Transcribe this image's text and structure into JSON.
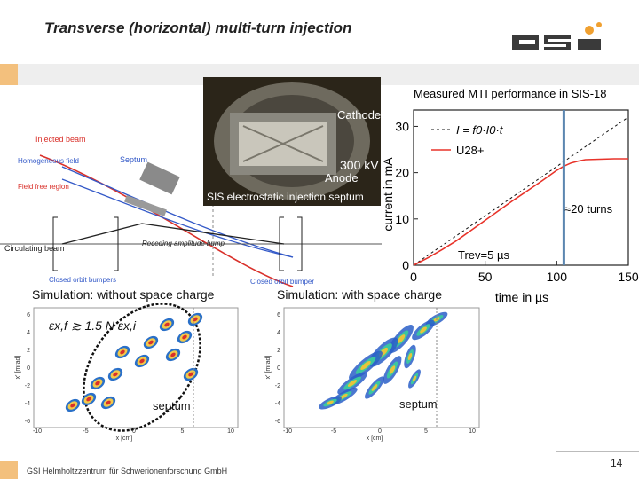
{
  "slide": {
    "title": "Transverse (horizontal) multi-turn injection",
    "logo_text": "GSI",
    "footer": "GSI Helmholtzzentrum für Schwerionenforschung GmbH",
    "page_number": "14"
  },
  "photo": {
    "cathode": "Cathode",
    "voltage": "300 kV",
    "anode": "Anode",
    "caption": "SIS electrostatic injection septum"
  },
  "schematic": {
    "injected_beam": "Injected beam",
    "septum": "Septum",
    "homogeneous_field": "Homogeneous field",
    "field_free_region": "Field free region",
    "circulating_beam": "Circulating beam",
    "receding_bump": "Receding amplitude bump",
    "closed_orbit_bumpers_left": "Closed orbit bumpers",
    "closed_orbit_bumper_right": "Closed orbit bumper"
  },
  "measurement": {
    "title": "Measured MTI performance in SIS-18",
    "legend_dashed": "I = f0·I0·t",
    "legend_red": "U28+",
    "turns_label": "≈20 turns",
    "trev_label": "Trev=5 µs",
    "xlabel": "time in µs",
    "ylabel": "current in mA",
    "x_ticks": [
      "0",
      "50",
      "100",
      "150"
    ],
    "y_ticks": [
      "0",
      "10",
      "20",
      "30"
    ]
  },
  "sim_left": {
    "label": "Simulation: without space charge",
    "formula": "εx,f ≳ 1.5 N εx,i",
    "septum": "septum",
    "xlabel": "x [cm]",
    "ylabel": "x' [mrad]",
    "x_ticks": [
      "-10",
      "-5",
      "0",
      "5",
      "10"
    ],
    "y_ticks": [
      "6",
      "4",
      "2",
      "0",
      "-2",
      "-4",
      "-6"
    ]
  },
  "sim_right": {
    "label": "Simulation: with space charge",
    "septum": "septum",
    "xlabel": "x [cm]",
    "ylabel": "x' [mrad]",
    "x_ticks": [
      "-10",
      "-5",
      "0",
      "5",
      "10"
    ],
    "y_ticks": [
      "6",
      "4",
      "2",
      "0",
      "-2",
      "-4",
      "-6"
    ]
  },
  "chart_data": {
    "type": "line",
    "title": "Measured MTI performance in SIS-18",
    "xlabel": "time in µs",
    "ylabel": "current in mA",
    "xlim": [
      0,
      150
    ],
    "ylim": [
      0,
      32
    ],
    "series": [
      {
        "name": "I = f0·I0·t",
        "style": "dashed",
        "color": "#111111",
        "x": [
          0,
          150
        ],
        "y": [
          0,
          32
        ]
      },
      {
        "name": "U28+",
        "style": "solid",
        "color": "#e8332a",
        "x": [
          0,
          10,
          20,
          30,
          40,
          50,
          60,
          70,
          80,
          90,
          100,
          105,
          110,
          115,
          120,
          130,
          140,
          150
        ],
        "y": [
          0,
          1.6,
          3.4,
          5.3,
          7.5,
          9.7,
          11.9,
          14.1,
          16.2,
          18.3,
          20.5,
          21.4,
          22.1,
          22.5,
          22.8,
          22.9,
          23.0,
          23.0
        ]
      }
    ],
    "annotations": [
      {
        "x": 105,
        "label": "≈20 turns"
      }
    ],
    "colors": {
      "marker": "#5b86b0"
    }
  }
}
